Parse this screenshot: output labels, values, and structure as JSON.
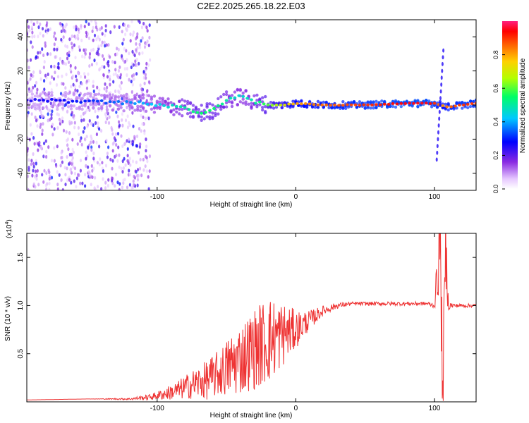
{
  "title": "C2E2.2025.265.18.22.E03",
  "chart_data": [
    {
      "type": "heatmap",
      "name": "spectrogram",
      "xlabel": "Height of straight line (km)",
      "ylabel": "Frequency (Hz)",
      "xlim": [
        -194,
        130
      ],
      "ylim": [
        -50,
        50
      ],
      "xticks": [
        -100,
        0,
        100
      ],
      "yticks": [
        -40,
        -20,
        0,
        20,
        40
      ],
      "colorbar": {
        "label": "Normalized spectral amplitude",
        "range": [
          0,
          1
        ],
        "ticks": [
          0.0,
          0.2,
          0.4,
          0.6,
          0.8
        ]
      },
      "ridge": {
        "x": [
          -194,
          -150,
          -110,
          -95,
          -80,
          -70,
          -60,
          -50,
          -40,
          -30,
          -20,
          -10,
          0,
          20,
          50,
          80,
          95,
          100,
          105,
          110,
          120,
          130
        ],
        "frequency": [
          3,
          2,
          1,
          0,
          -2,
          -5,
          -3,
          3,
          5,
          2,
          0,
          0,
          1,
          0,
          0,
          1,
          1,
          1,
          0,
          -1,
          0,
          1
        ],
        "amplitude": [
          0.25,
          0.3,
          0.4,
          0.45,
          0.5,
          0.55,
          0.55,
          0.5,
          0.45,
          0.5,
          0.6,
          0.7,
          0.8,
          0.85,
          0.9,
          0.95,
          0.95,
          0.9,
          0.8,
          0.85,
          0.9,
          0.9
        ]
      },
      "noise_region_x": [
        -194,
        -105
      ]
    },
    {
      "type": "line",
      "name": "snr",
      "xlabel": "Height of straight line (km)",
      "ylabel": "SNR (10 * v/v)",
      "multiplier": "(x10",
      "multiplier_exp": "4",
      "xlim": [
        -194,
        130
      ],
      "ylim": [
        0,
        1.75
      ],
      "xticks": [
        -100,
        0,
        100
      ],
      "yticks": [
        0.5,
        1.0,
        1.5
      ],
      "color": "#ee3333",
      "series": {
        "x": [
          -194,
          -150,
          -120,
          -105,
          -95,
          -85,
          -75,
          -65,
          -55,
          -45,
          -35,
          -25,
          -18,
          -10,
          0,
          10,
          20,
          30,
          40,
          60,
          80,
          95,
          100,
          102,
          104,
          106,
          108,
          110,
          115,
          120,
          130
        ],
        "y": [
          0.02,
          0.03,
          0.03,
          0.05,
          0.08,
          0.12,
          0.18,
          0.22,
          0.3,
          0.4,
          0.5,
          0.6,
          0.65,
          0.7,
          0.75,
          0.85,
          0.95,
          1.0,
          1.02,
          1.02,
          1.02,
          1.02,
          1.0,
          1.3,
          1.7,
          0.05,
          1.6,
          1.0,
          1.0,
          1.0,
          1.0
        ],
        "spread": [
          0.0,
          0.0,
          0.01,
          0.03,
          0.06,
          0.1,
          0.15,
          0.2,
          0.25,
          0.35,
          0.4,
          0.45,
          0.45,
          0.35,
          0.2,
          0.1,
          0.05,
          0.03,
          0.02,
          0.02,
          0.02,
          0.02,
          0.03,
          0.3,
          0.5,
          0.4,
          0.5,
          0.05,
          0.02,
          0.02,
          0.02
        ]
      }
    }
  ]
}
